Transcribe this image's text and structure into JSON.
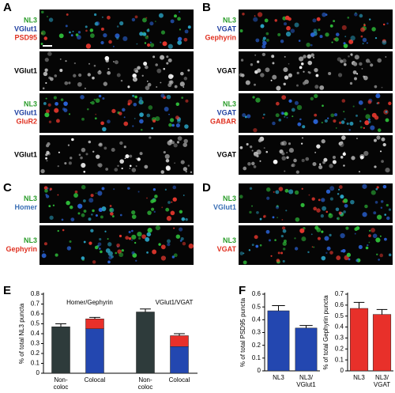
{
  "panels": {
    "letters": [
      "A",
      "B",
      "C",
      "D",
      "E",
      "F"
    ]
  },
  "micrographs": [
    {
      "labels": [
        "NL3",
        "VGlut1",
        "PSD95"
      ],
      "colors": [
        "#2a9d2a",
        "#1f3fa0",
        "#e03020"
      ],
      "merged": true
    },
    {
      "labels": [
        "VGlut1"
      ],
      "colors": [
        "#000000"
      ],
      "merged": false
    },
    {
      "labels": [
        "NL3",
        "VGlut1",
        "GluR2"
      ],
      "colors": [
        "#2a9d2a",
        "#1f3fa0",
        "#e03020"
      ],
      "merged": true
    },
    {
      "labels": [
        "VGlut1"
      ],
      "colors": [
        "#000000"
      ],
      "merged": false
    },
    {
      "labels": [
        "NL3",
        "VGAT",
        "Gephyrin"
      ],
      "colors": [
        "#2a9d2a",
        "#1f3fa0",
        "#e03020"
      ],
      "merged": true
    },
    {
      "labels": [
        "VGAT"
      ],
      "colors": [
        "#000000"
      ],
      "merged": false
    },
    {
      "labels": [
        "NL3",
        "VGAT",
        "GABAR"
      ],
      "colors": [
        "#2a9d2a",
        "#1f3fa0",
        "#e03020"
      ],
      "merged": true
    },
    {
      "labels": [
        "VGAT"
      ],
      "colors": [
        "#000000"
      ],
      "merged": false
    },
    {
      "labels": [
        "NL3",
        "Homer"
      ],
      "colors": [
        "#2a9d2a",
        "#3a6fb5"
      ],
      "merged": true
    },
    {
      "labels": [
        "NL3",
        "Gephyrin"
      ],
      "colors": [
        "#2a9d2a",
        "#e03020"
      ],
      "merged": true
    },
    {
      "labels": [
        "NL3",
        "VGlut1"
      ],
      "colors": [
        "#2a9d2a",
        "#3a6fb5"
      ],
      "merged": true
    },
    {
      "labels": [
        "NL3",
        "VGAT"
      ],
      "colors": [
        "#2a9d2a",
        "#e03020"
      ],
      "merged": true
    }
  ],
  "chart_data": [
    {
      "type": "bar",
      "stacked": true,
      "ylabel": "% of total NL3 puncta",
      "groups": [
        "Homer/Gephyrin",
        "VGlut1/VGAT"
      ],
      "categories": [
        "Non-\ncoloc",
        "Colocal",
        "Non-\ncoloc",
        "Colocal"
      ],
      "series": [
        {
          "color": "#2e3b3b",
          "values": [
            0.47,
            null,
            0.62,
            null
          ]
        },
        {
          "color": "#2347b0",
          "values": [
            null,
            0.45,
            null,
            0.27
          ]
        },
        {
          "color": "#e8302a",
          "values": [
            null,
            0.1,
            null,
            0.11
          ]
        }
      ],
      "errors": [
        0.03,
        0.015,
        0.03,
        0.02
      ],
      "ylim": [
        0,
        0.8
      ],
      "yticks": [
        0,
        0.1,
        0.2,
        0.3,
        0.4,
        0.5,
        0.6,
        0.7,
        0.8
      ]
    },
    {
      "type": "bar",
      "stacked": false,
      "ylabel": "% of total PSD95 puncta",
      "categories": [
        "NL3",
        "NL3/\nVGlut1"
      ],
      "series": [
        {
          "color": "#2347b0",
          "values": [
            0.47,
            0.335
          ]
        }
      ],
      "errors": [
        0.04,
        0.02
      ],
      "ylim": [
        0,
        0.6
      ],
      "yticks": [
        0,
        0.1,
        0.2,
        0.3,
        0.4,
        0.5,
        0.6
      ]
    },
    {
      "type": "bar",
      "stacked": false,
      "ylabel": "% of total Gephyrin puncta",
      "categories": [
        "NL3",
        "NL3/\nVGAT"
      ],
      "series": [
        {
          "color": "#e8302a",
          "values": [
            0.57,
            0.515
          ]
        }
      ],
      "errors": [
        0.055,
        0.045
      ],
      "ylim": [
        0,
        0.7
      ],
      "yticks": [
        0,
        0.1,
        0.2,
        0.3,
        0.4,
        0.5,
        0.6,
        0.7
      ]
    }
  ]
}
